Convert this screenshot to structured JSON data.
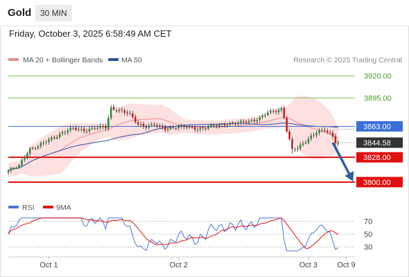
{
  "header": {
    "instrument": "Gold",
    "timeframe": "30 MIN",
    "datetime": "Friday, October 3, 2025 6:58:49 AM CET"
  },
  "legend": {
    "ma20_bb": "MA 20 + Bollinger Bands",
    "ma50": "MA 50",
    "copyright": "Research © 2025 Trading Central",
    "rsi": "RSI",
    "ma9": "9MA"
  },
  "colors": {
    "resistance_green": "#7cc35a",
    "pivot_blue": "#3b6fd6",
    "support_red": "#e01010",
    "ma20": "#e88a8a",
    "ma50": "#2d4f9e",
    "bollinger_fill": "#fde0e0",
    "arrow": "#2f5fa0",
    "rsi_line": "#4a74d8",
    "rsi_ma9": "#e01010",
    "candle_up": "#2e8b3a",
    "candle_down": "#c81e1e",
    "last_price_bg": "#333333"
  },
  "chart_data": [
    {
      "type": "candlestick",
      "ylim": [
        3789,
        3933
      ],
      "levels": [
        {
          "value": 3920.0,
          "label": "3920.00",
          "kind": "resistance"
        },
        {
          "value": 3895.0,
          "label": "3895.00",
          "kind": "resistance"
        },
        {
          "value": 3863.0,
          "label": "3863.00",
          "kind": "pivot"
        },
        {
          "value": 3828.0,
          "label": "3828.00",
          "kind": "support"
        },
        {
          "value": 3800.0,
          "label": "3800.00",
          "kind": "support"
        }
      ],
      "last_price": {
        "value": 3844.58,
        "label": "3844.58"
      },
      "x_tick_labels": [
        {
          "label": "Oct 1",
          "index": 15
        },
        {
          "label": "Oct 2",
          "index": 63
        },
        {
          "label": "Oct 3",
          "index": 111
        },
        {
          "label": "Oct 9",
          "index": 125
        }
      ],
      "projection": {
        "from_index": 120,
        "from_value": 3844.58,
        "to_index": 127,
        "to_value": 3800
      }
    },
    {
      "type": "line",
      "ylim": [
        20,
        78
      ],
      "y_ticks": [
        70,
        50,
        30
      ],
      "series": [
        {
          "name": "RSI"
        },
        {
          "name": "9MA"
        }
      ]
    }
  ]
}
